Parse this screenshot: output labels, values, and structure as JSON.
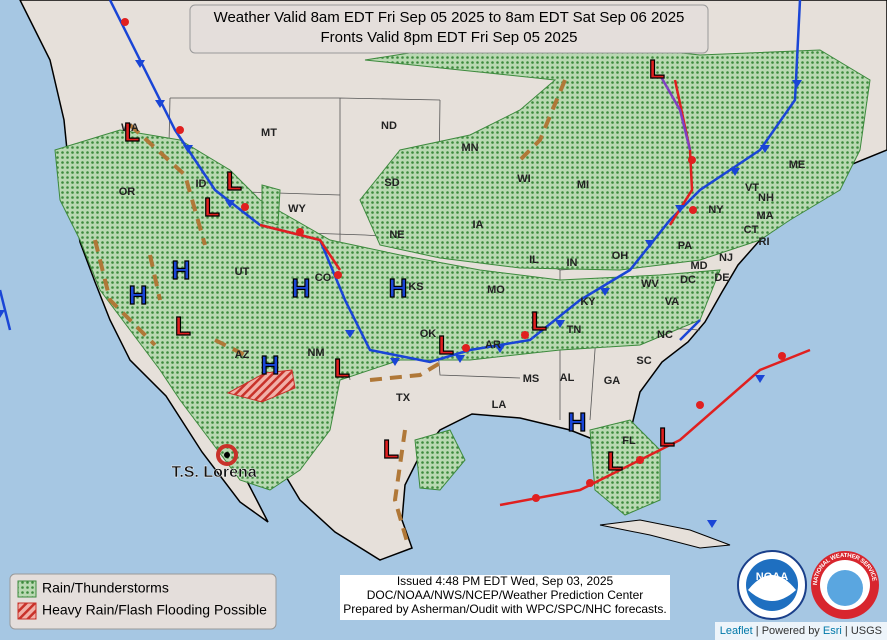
{
  "header": {
    "title_lines": [
      "Weather Valid 8am EDT Fri Sep 05 2025 to 8am EDT Sat Sep 06 2025",
      "Fronts Valid 8pm EDT Fri Sep 05 2025"
    ]
  },
  "states": [
    "WA",
    "OR",
    "ID",
    "MT",
    "WY",
    "ND",
    "SD",
    "NE",
    "MN",
    "IA",
    "WI",
    "MI",
    "IL",
    "IN",
    "OH",
    "PA",
    "NY",
    "VT",
    "NH",
    "ME",
    "MA",
    "CT",
    "RI",
    "NJ",
    "MD",
    "DC",
    "DE",
    "WV",
    "VA",
    "KY",
    "TN",
    "NC",
    "SC",
    "GA",
    "AL",
    "MS",
    "LA",
    "AR",
    "MO",
    "KS",
    "OK",
    "TX",
    "NM",
    "AZ",
    "UT",
    "CO",
    "FL"
  ],
  "pressure_centers": [
    "L",
    "L",
    "L",
    "L",
    "L",
    "L",
    "L",
    "L",
    "L",
    "L",
    "L",
    "H",
    "H",
    "H",
    "H",
    "H",
    "H"
  ],
  "storm": {
    "label": "T.S. Lorena"
  },
  "legend": {
    "items": [
      "Rain/Thunderstorms",
      "Heavy Rain/Flash Flooding Possible"
    ]
  },
  "issued": {
    "lines": [
      "Issued  4:48 PM EDT Wed, Sep 03, 2025",
      "DOC/NOAA/NWS/NCEP/Weather Prediction Center",
      "Prepared by Asherman/Oudit with WPC/SPC/NHC forecasts."
    ]
  },
  "logos": {
    "noaa": "NOAA",
    "nws": "NATIONAL WEATHER SERVICE"
  },
  "attribution": {
    "leaflet": "Leaflet",
    "powered": "Powered by",
    "esri": "Esri",
    "usgs": "USGS"
  }
}
